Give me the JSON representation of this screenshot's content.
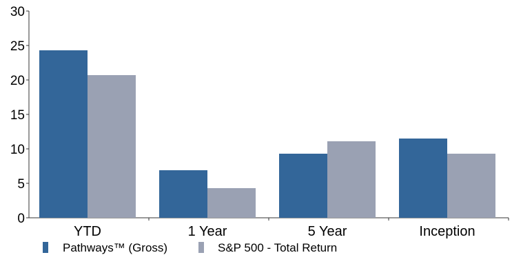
{
  "chart_data": {
    "type": "bar",
    "categories": [
      "YTD",
      "1 Year",
      "5 Year",
      "Inception"
    ],
    "series": [
      {
        "name": "Pathways™ (Gross)",
        "color": "#336699",
        "values": [
          24.3,
          6.9,
          9.3,
          11.5
        ]
      },
      {
        "name": "S&P 500 - Total Return",
        "color": "#9aa1b3",
        "values": [
          20.7,
          4.3,
          11.1,
          9.3
        ]
      }
    ],
    "ylim": [
      0,
      30
    ],
    "yticks": [
      0,
      5,
      10,
      15,
      20,
      25,
      30
    ],
    "grid": false,
    "legend_position": "bottom-left"
  }
}
